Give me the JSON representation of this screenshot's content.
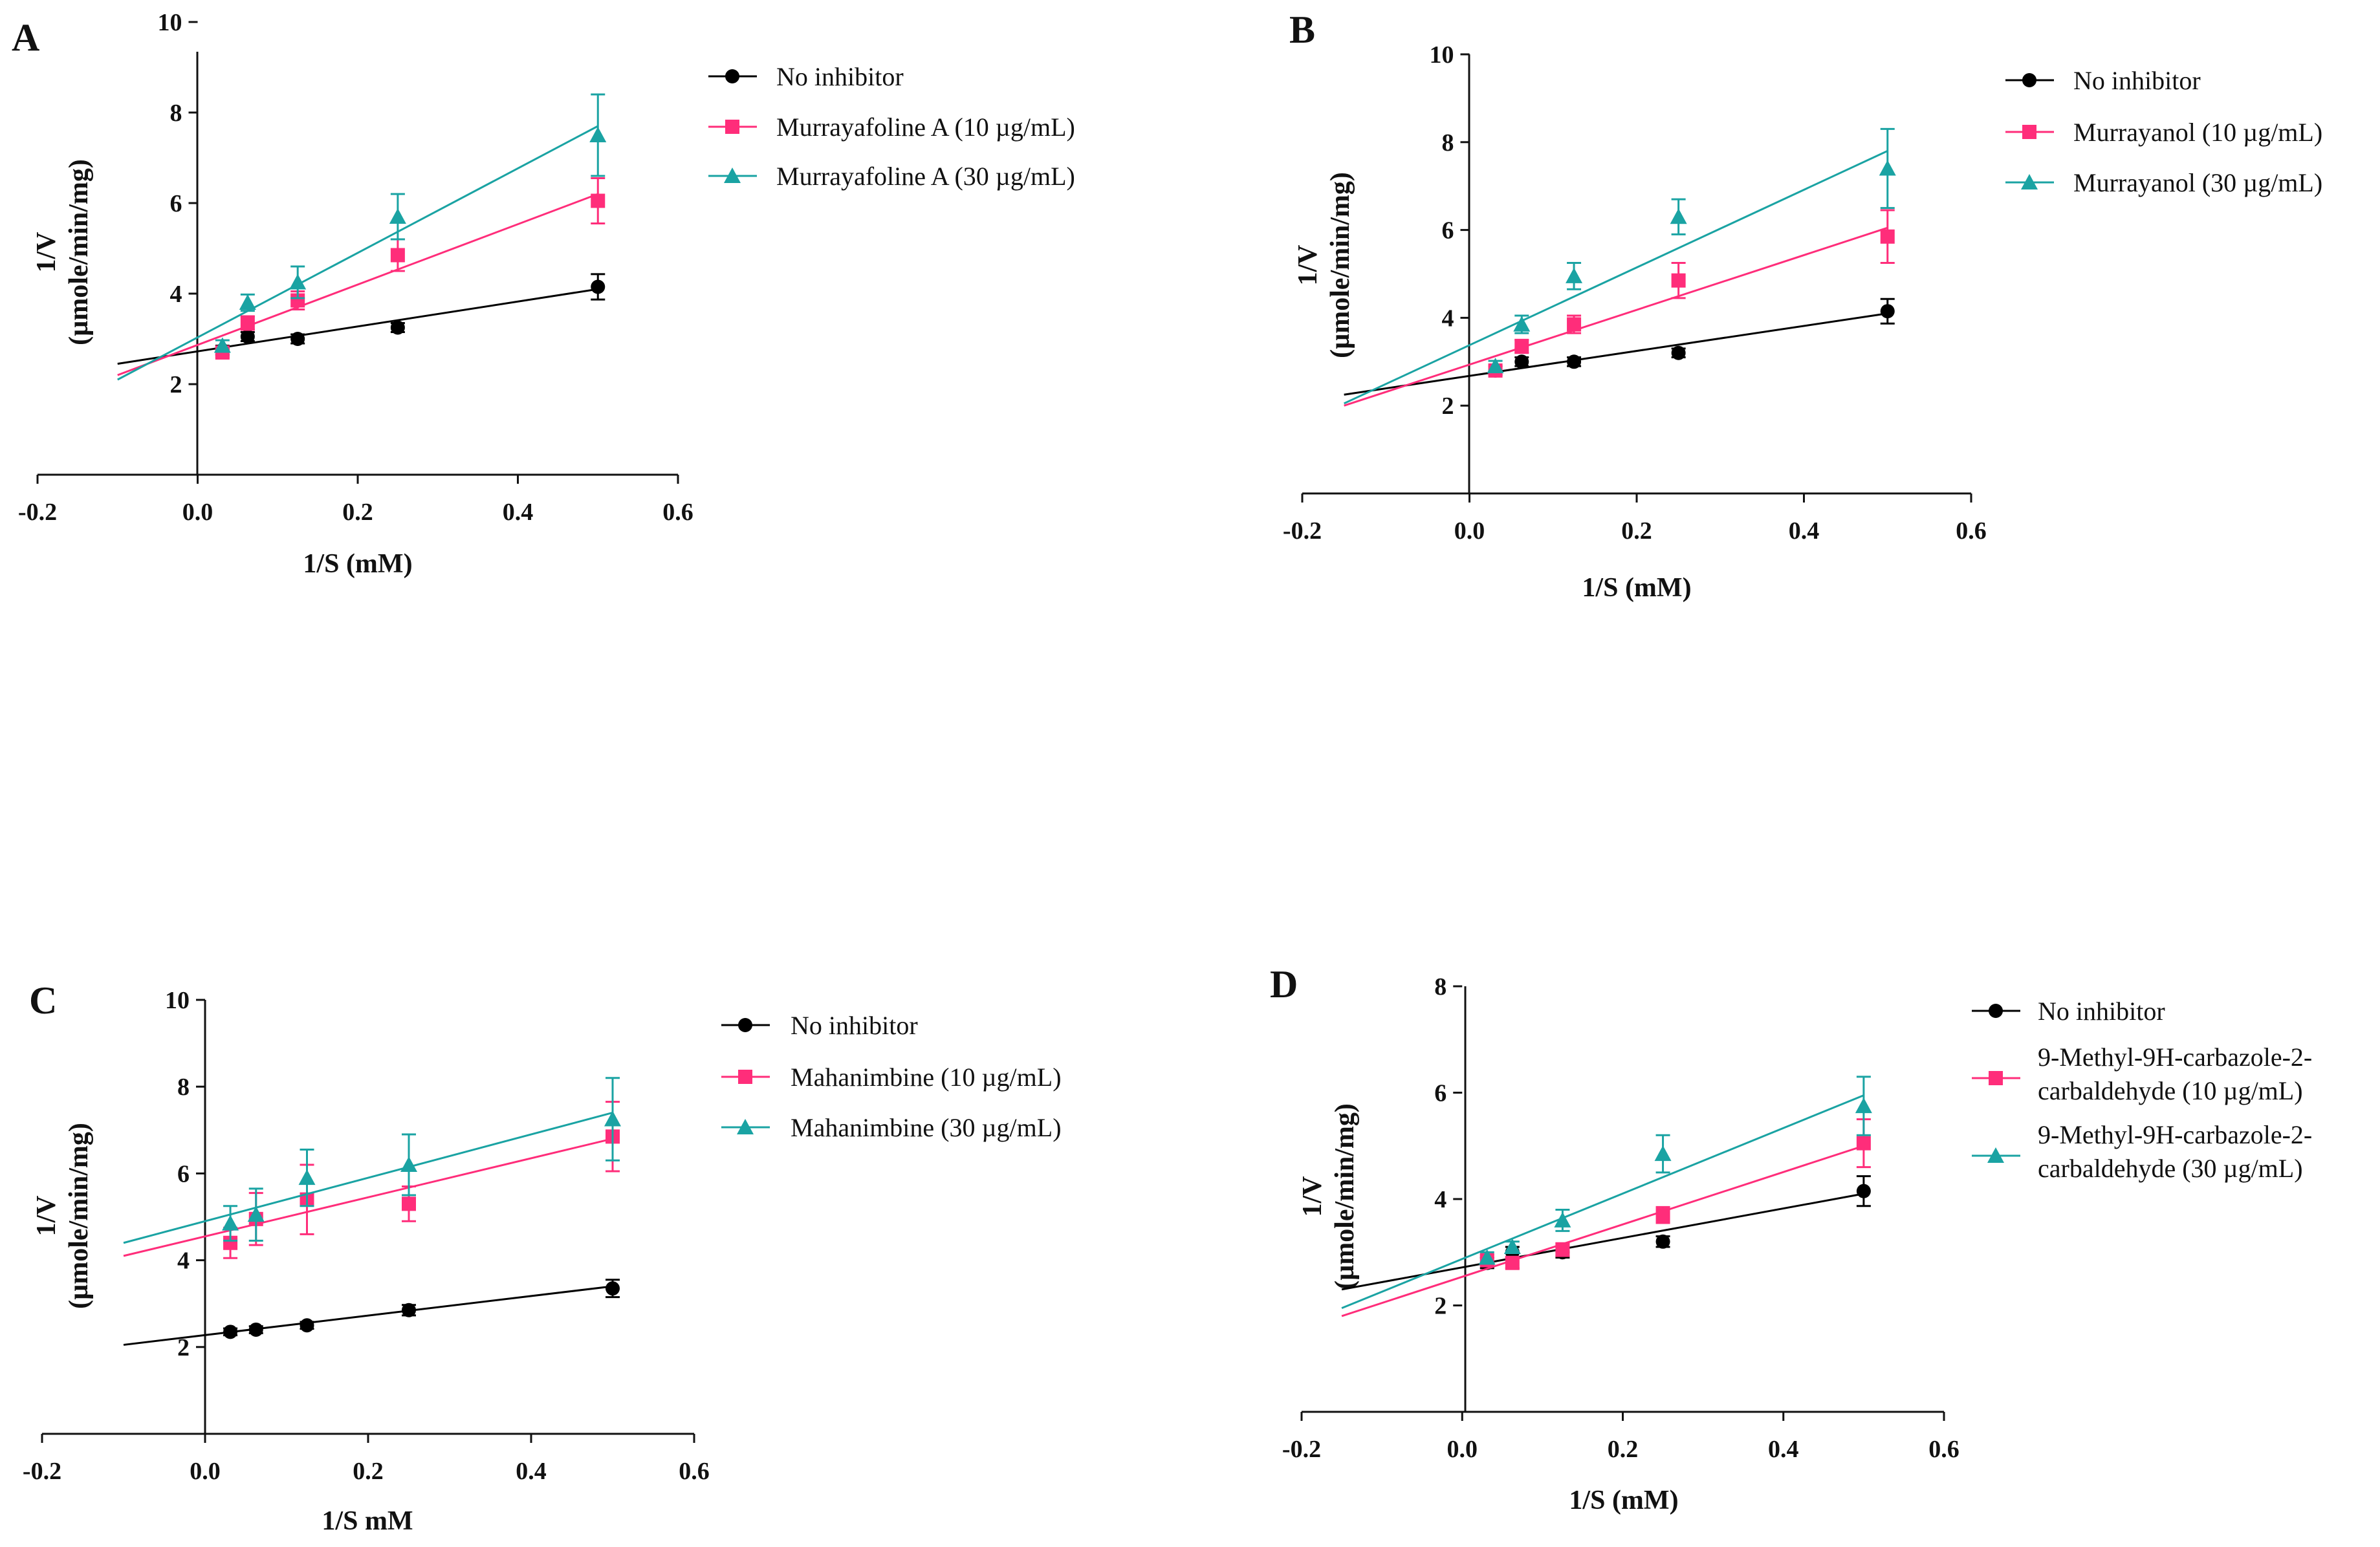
{
  "figure": {
    "colors": {
      "none": "#000000",
      "low": "#ff2d7a",
      "high": "#1aa3a3"
    }
  },
  "chart_data": [
    {
      "type": "scatter",
      "panel": "A",
      "xlabel": "1/S (mM)",
      "ylabel_line1": "1/V",
      "ylabel_line2": "(µmole/min/mg)",
      "xlim": [
        -0.2,
        0.6
      ],
      "ylim": [
        0,
        10
      ],
      "xticks": [
        -0.2,
        0.0,
        0.2,
        0.4,
        0.6
      ],
      "xtick_labels": [
        "-0.2",
        "0.0",
        "0.2",
        "0.4",
        "0.6"
      ],
      "yticks": [
        2,
        4,
        6,
        8,
        10
      ],
      "ytick_labels": [
        "2",
        "4",
        "6",
        "8",
        "10"
      ],
      "legend_position": "right",
      "series": [
        {
          "name": "No inhibitor",
          "marker": "circle",
          "color": "#000000",
          "x": [
            0.031,
            0.0625,
            0.125,
            0.25,
            0.5
          ],
          "y": [
            2.75,
            3.05,
            3.0,
            3.25,
            4.15
          ],
          "err": [
            0.1,
            0.1,
            0.1,
            0.1,
            0.28
          ],
          "fit": {
            "x": [
              -0.1,
              0.5
            ],
            "y": [
              2.45,
              4.1
            ]
          }
        },
        {
          "name": "Murrayafoline A (10 µg/mL)",
          "marker": "square",
          "color": "#ff2d7a",
          "x": [
            0.031,
            0.0625,
            0.125,
            0.25,
            0.5
          ],
          "y": [
            2.7,
            3.35,
            3.85,
            4.85,
            6.05
          ],
          "err": [
            0.1,
            0.15,
            0.2,
            0.35,
            0.5
          ],
          "fit": {
            "x": [
              -0.1,
              0.5
            ],
            "y": [
              2.2,
              6.2
            ]
          }
        },
        {
          "name": "Murrayafoline A (30 µg/mL)",
          "marker": "triangle",
          "color": "#1aa3a3",
          "x": [
            0.031,
            0.0625,
            0.125,
            0.25,
            0.5
          ],
          "y": [
            2.85,
            3.8,
            4.25,
            5.7,
            7.5
          ],
          "err": [
            0.12,
            0.18,
            0.35,
            0.5,
            0.9
          ],
          "fit": {
            "x": [
              -0.1,
              0.5
            ],
            "y": [
              2.1,
              7.7
            ]
          }
        }
      ]
    },
    {
      "type": "scatter",
      "panel": "B",
      "xlabel": "1/S (mM)",
      "ylabel_line1": "1/V",
      "ylabel_line2": "(µmole/min/mg)",
      "xlim": [
        -0.2,
        0.6
      ],
      "ylim": [
        0,
        10
      ],
      "xticks": [
        -0.2,
        0.0,
        0.2,
        0.4,
        0.6
      ],
      "xtick_labels": [
        "-0.2",
        "0.0",
        "0.2",
        "0.4",
        "0.6"
      ],
      "yticks": [
        2,
        4,
        6,
        8,
        10
      ],
      "ytick_labels": [
        "2",
        "4",
        "6",
        "8",
        "10"
      ],
      "legend_position": "right",
      "series": [
        {
          "name": "No inhibitor",
          "marker": "circle",
          "color": "#000000",
          "x": [
            0.031,
            0.0625,
            0.125,
            0.25,
            0.5
          ],
          "y": [
            2.8,
            3.0,
            3.0,
            3.2,
            4.15
          ],
          "err": [
            0.1,
            0.1,
            0.1,
            0.1,
            0.28
          ],
          "fit": {
            "x": [
              -0.15,
              0.5
            ],
            "y": [
              2.25,
              4.1
            ]
          }
        },
        {
          "name": "Murrayanol (10 µg/mL)",
          "marker": "square",
          "color": "#ff2d7a",
          "x": [
            0.031,
            0.0625,
            0.125,
            0.25,
            0.5
          ],
          "y": [
            2.8,
            3.35,
            3.85,
            4.85,
            5.85
          ],
          "err": [
            0.1,
            0.15,
            0.2,
            0.4,
            0.6
          ],
          "fit": {
            "x": [
              -0.15,
              0.5
            ],
            "y": [
              2.0,
              6.05
            ]
          }
        },
        {
          "name": "Murrayanol (30 µg/mL)",
          "marker": "triangle",
          "color": "#1aa3a3",
          "x": [
            0.031,
            0.0625,
            0.125,
            0.25,
            0.5
          ],
          "y": [
            2.9,
            3.85,
            4.95,
            6.3,
            7.4
          ],
          "err": [
            0.12,
            0.2,
            0.3,
            0.4,
            0.9
          ],
          "fit": {
            "x": [
              -0.15,
              0.5
            ],
            "y": [
              2.05,
              7.8
            ]
          }
        }
      ]
    },
    {
      "type": "scatter",
      "panel": "C",
      "xlabel": "1/S mM",
      "ylabel_line1": "1/V",
      "ylabel_line2": "(µmole/min/mg)",
      "xlim": [
        -0.2,
        0.6
      ],
      "ylim": [
        0,
        10
      ],
      "xticks": [
        -0.2,
        0.0,
        0.2,
        0.4,
        0.6
      ],
      "xtick_labels": [
        "-0.2",
        "0.0",
        "0.2",
        "0.4",
        "0.6"
      ],
      "yticks": [
        2,
        4,
        6,
        8,
        10
      ],
      "ytick_labels": [
        "2",
        "4",
        "6",
        "8",
        "10"
      ],
      "legend_position": "right",
      "series": [
        {
          "name": "No inhibitor",
          "marker": "circle",
          "color": "#000000",
          "x": [
            0.031,
            0.0625,
            0.125,
            0.25,
            0.5
          ],
          "y": [
            2.35,
            2.4,
            2.5,
            2.85,
            3.35
          ],
          "err": [
            0.08,
            0.08,
            0.08,
            0.12,
            0.2
          ],
          "fit": {
            "x": [
              -0.1,
              0.5
            ],
            "y": [
              2.05,
              3.4
            ]
          }
        },
        {
          "name": "Mahanimbine (10 µg/mL)",
          "marker": "square",
          "color": "#ff2d7a",
          "x": [
            0.031,
            0.0625,
            0.125,
            0.25,
            0.5
          ],
          "y": [
            4.4,
            4.95,
            5.4,
            5.3,
            6.85
          ],
          "err": [
            0.35,
            0.6,
            0.8,
            0.4,
            0.8
          ],
          "fit": {
            "x": [
              -0.1,
              0.5
            ],
            "y": [
              4.1,
              6.8
            ]
          }
        },
        {
          "name": "Mahanimbine (30 µg/mL)",
          "marker": "triangle",
          "color": "#1aa3a3",
          "x": [
            0.031,
            0.0625,
            0.125,
            0.25,
            0.5
          ],
          "y": [
            4.85,
            5.05,
            5.9,
            6.2,
            7.25
          ],
          "err": [
            0.4,
            0.6,
            0.65,
            0.7,
            0.95
          ],
          "fit": {
            "x": [
              -0.1,
              0.5
            ],
            "y": [
              4.4,
              7.4
            ]
          }
        }
      ]
    },
    {
      "type": "scatter",
      "panel": "D",
      "xlabel": "1/S (mM)",
      "ylabel_line1": "1/V",
      "ylabel_line2": "(µmole/min/mg)",
      "xlim": [
        -0.2,
        0.6
      ],
      "ylim": [
        0,
        8
      ],
      "xticks": [
        -0.2,
        0.0,
        0.2,
        0.4,
        0.6
      ],
      "xtick_labels": [
        "-0.2",
        "0.0",
        "0.2",
        "0.4",
        "0.6"
      ],
      "yticks": [
        2,
        4,
        6,
        8
      ],
      "ytick_labels": [
        "2",
        "4",
        "6",
        "8"
      ],
      "legend_position": "right",
      "series": [
        {
          "name": "No inhibitor",
          "marker": "circle",
          "color": "#000000",
          "x": [
            0.031,
            0.0625,
            0.125,
            0.25,
            0.5
          ],
          "y": [
            2.8,
            3.0,
            3.0,
            3.2,
            4.15
          ],
          "err": [
            0.1,
            0.1,
            0.1,
            0.1,
            0.28
          ],
          "fit": {
            "x": [
              -0.15,
              0.5
            ],
            "y": [
              2.3,
              4.1
            ]
          }
        },
        {
          "name": "9-Methyl-9H-carbazole-2-carbaldehyde (10 µg/mL)",
          "label_line1": "9-Methyl-9H-carbazole-2-",
          "label_line2": "carbaldehyde (10 µg/mL)",
          "marker": "square",
          "color": "#ff2d7a",
          "x": [
            0.031,
            0.0625,
            0.125,
            0.25,
            0.5
          ],
          "y": [
            2.85,
            2.8,
            3.05,
            3.7,
            5.05
          ],
          "err": [
            0.1,
            0.1,
            0.12,
            0.15,
            0.45
          ],
          "fit": {
            "x": [
              -0.15,
              0.5
            ],
            "y": [
              1.8,
              5.0
            ]
          }
        },
        {
          "name": "9-Methyl-9H-carbazole-2-carbaldehyde (30 µg/mL)",
          "label_line1": "9-Methyl-9H-carbazole-2-",
          "label_line2": "carbaldehyde (30 µg/mL)",
          "marker": "triangle",
          "color": "#1aa3a3",
          "x": [
            0.031,
            0.0625,
            0.125,
            0.25,
            0.5
          ],
          "y": [
            2.9,
            3.1,
            3.6,
            4.85,
            5.75
          ],
          "err": [
            0.1,
            0.1,
            0.2,
            0.35,
            0.55
          ],
          "fit": {
            "x": [
              -0.15,
              0.5
            ],
            "y": [
              1.95,
              5.95
            ]
          }
        }
      ]
    }
  ]
}
